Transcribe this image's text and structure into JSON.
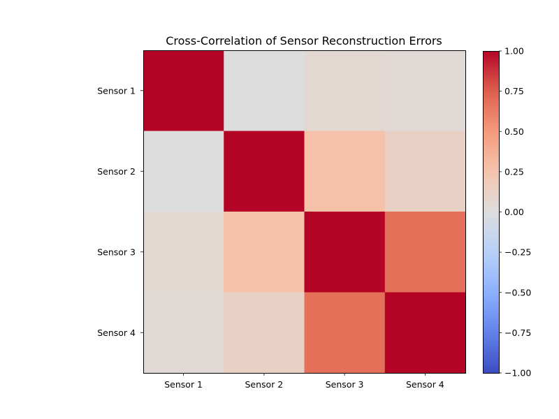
{
  "chart_data": {
    "type": "heatmap",
    "title": "Cross-Correlation of Sensor Reconstruction Errors",
    "xlabel": "",
    "ylabel": "",
    "x_categories": [
      "Sensor 1",
      "Sensor 2",
      "Sensor 3",
      "Sensor 4"
    ],
    "y_categories": [
      "Sensor 1",
      "Sensor 2",
      "Sensor 3",
      "Sensor 4"
    ],
    "values": [
      [
        1.0,
        0.0,
        0.06,
        0.04
      ],
      [
        0.0,
        1.0,
        0.27,
        0.13
      ],
      [
        0.06,
        0.27,
        1.0,
        0.68
      ],
      [
        0.04,
        0.13,
        0.68,
        1.0
      ]
    ],
    "colormap": "coolwarm",
    "vmin": -1.0,
    "vmax": 1.0,
    "colorbar": {
      "ticks": [
        1.0,
        0.75,
        0.5,
        0.25,
        0.0,
        -0.25,
        -0.5,
        -0.75,
        -1.0
      ],
      "tick_labels": [
        "1.00",
        "0.75",
        "0.50",
        "0.25",
        "0.00",
        "−0.25",
        "−0.50",
        "−0.75",
        "−1.00"
      ]
    },
    "grid": false
  }
}
